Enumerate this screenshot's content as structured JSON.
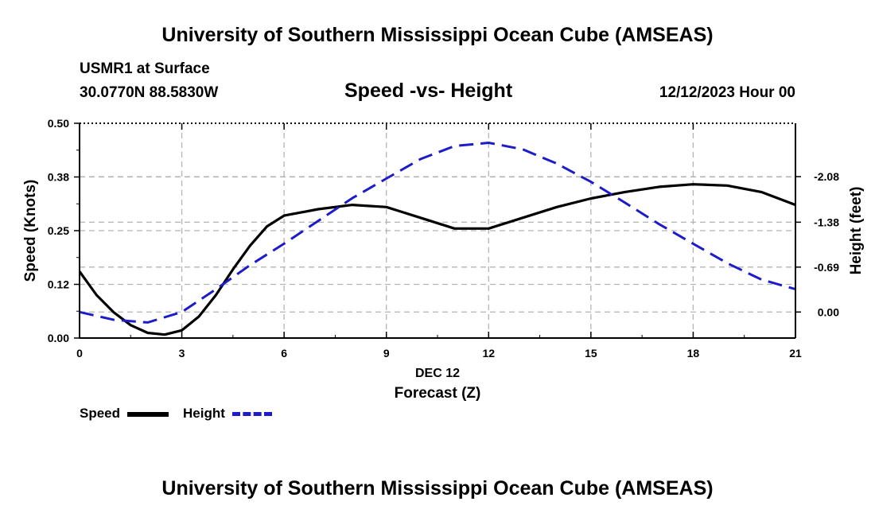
{
  "header": {
    "title": "University of Southern Mississippi Ocean Cube (AMSEAS)",
    "station": "USMR1 at Surface",
    "coords": "30.0770N  88.5830W",
    "subtitle": "Speed -vs- Height",
    "datetime": "12/12/2023 Hour 00"
  },
  "footer": {
    "title": "University of Southern Mississippi Ocean Cube (AMSEAS)"
  },
  "legend": {
    "speed_label": "Speed",
    "height_label": "Height",
    "speed_color": "#000000",
    "height_color": "#1c1cc8"
  },
  "chart_data": {
    "type": "line",
    "title": "Speed -vs- Height",
    "xlabel": "Forecast (Z)",
    "xlabel_date": "DEC 12",
    "x_ticks": [
      0,
      3,
      6,
      9,
      12,
      15,
      18,
      21
    ],
    "x_tick_labels": [
      "0",
      "3",
      "6",
      "9",
      "12",
      "15",
      "18",
      "21"
    ],
    "xlim": [
      0,
      21
    ],
    "y_left": {
      "label": "Speed (Knots)",
      "lim": [
        0,
        0.5
      ],
      "ticks": [
        0,
        0.125,
        0.25,
        0.375,
        0.5
      ],
      "tick_labels": [
        "0.00",
        "0.12",
        "0.25",
        "0.38",
        "0.50"
      ]
    },
    "y_right": {
      "label": "Height (feet)",
      "lim": [
        0.4,
        -2.9
      ],
      "ticks": [
        0.0,
        -0.69,
        -1.38,
        -2.08
      ],
      "tick_labels": [
        "0.00",
        "-0.69",
        "-1.38",
        "-2.08"
      ]
    },
    "grid": true,
    "series": [
      {
        "name": "Speed",
        "axis": "left",
        "style": "solid",
        "color": "#000000",
        "x": [
          0,
          0.5,
          1,
          1.5,
          2,
          2.5,
          3,
          3.5,
          4,
          4.5,
          5,
          5.5,
          6,
          7,
          8,
          9,
          10,
          11,
          12,
          13,
          14,
          15,
          16,
          17,
          18,
          19,
          20,
          21
        ],
        "values": [
          0.155,
          0.1,
          0.06,
          0.03,
          0.012,
          0.008,
          0.018,
          0.05,
          0.1,
          0.16,
          0.215,
          0.26,
          0.285,
          0.3,
          0.31,
          0.305,
          0.28,
          0.255,
          0.255,
          0.28,
          0.305,
          0.325,
          0.34,
          0.352,
          0.358,
          0.355,
          0.34,
          0.31
        ]
      },
      {
        "name": "Height",
        "axis": "right",
        "style": "dashed",
        "color": "#1c1cc8",
        "x": [
          0,
          1,
          2,
          3,
          4,
          5,
          6,
          7,
          8,
          9,
          10,
          11,
          12,
          13,
          14,
          15,
          16,
          17,
          18,
          19,
          20,
          21
        ],
        "values": [
          0.0,
          0.12,
          0.16,
          0.0,
          -0.35,
          -0.72,
          -1.05,
          -1.4,
          -1.75,
          -2.05,
          -2.35,
          -2.55,
          -2.6,
          -2.5,
          -2.28,
          -2.0,
          -1.68,
          -1.35,
          -1.05,
          -0.75,
          -0.5,
          -0.35
        ]
      }
    ]
  }
}
